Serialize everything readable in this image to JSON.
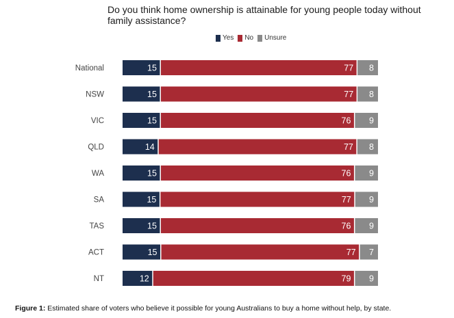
{
  "colors": {
    "yes": "#1d2f4e",
    "no": "#a82a33",
    "unsure": "#8a8a8a"
  },
  "caption": {
    "label": "Figure 1:",
    "text": " Estimated share of voters who believe it possible for young Australians to buy a home without help, by state."
  },
  "chart_data": {
    "type": "bar",
    "orientation": "horizontal",
    "stacked": true,
    "title": "Do you think home ownership is attainable for young people today without family assistance?",
    "legend_position": "top",
    "grid": false,
    "categories": [
      "National",
      "NSW",
      "VIC",
      "QLD",
      "WA",
      "SA",
      "TAS",
      "ACT",
      "NT"
    ],
    "series": [
      {
        "name": "Yes",
        "values": [
          15,
          15,
          15,
          14,
          15,
          15,
          15,
          15,
          12
        ]
      },
      {
        "name": "No",
        "values": [
          77,
          77,
          76,
          77,
          76,
          77,
          76,
          77,
          79
        ]
      },
      {
        "name": "Unsure",
        "values": [
          8,
          8,
          9,
          8,
          9,
          9,
          9,
          7,
          9
        ]
      }
    ]
  }
}
